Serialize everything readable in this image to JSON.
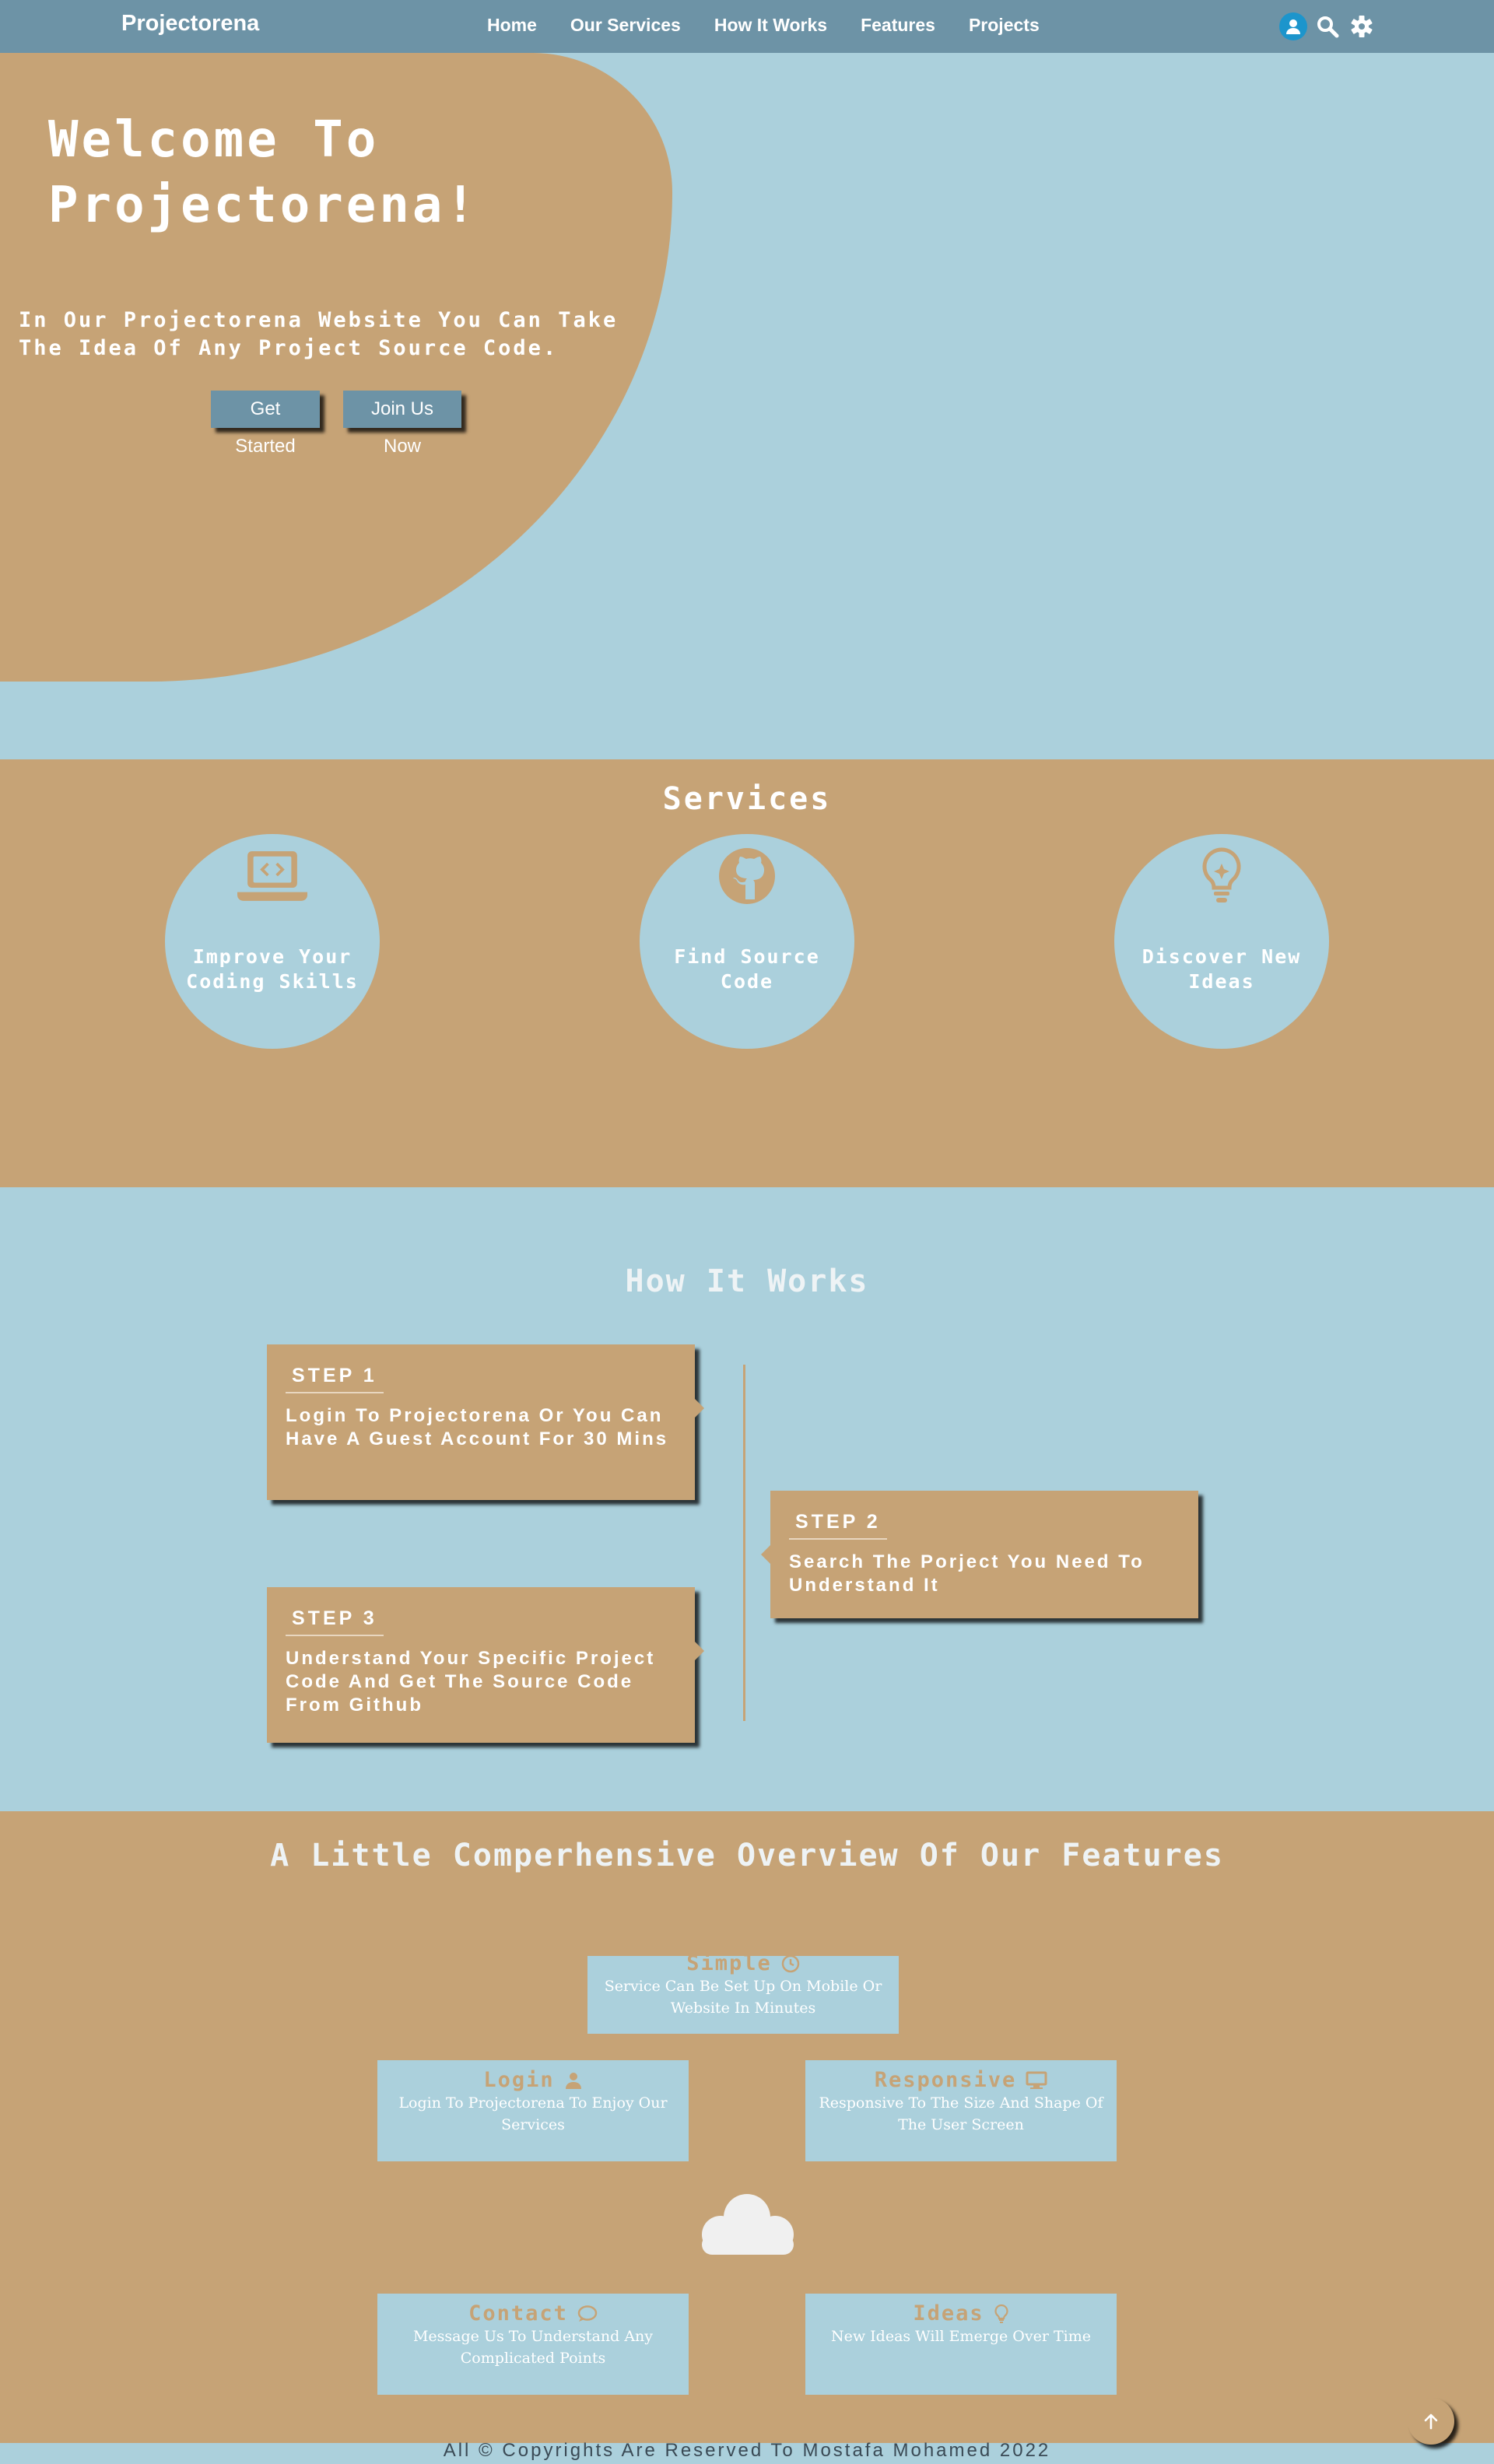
{
  "nav": {
    "brand": "Projectorena",
    "links": [
      "Home",
      "Our Services",
      "How It Works",
      "Features",
      "Projects"
    ],
    "icons": [
      "user-icon",
      "search-icon",
      "gear-icon"
    ]
  },
  "hero": {
    "title": "Welcome To Projectorena!",
    "subtitle": " In Our Projectorena Website You Can Take The Idea Of Any Project Source Code.",
    "buttons": [
      "Get Started",
      "Join Us Now"
    ]
  },
  "services": {
    "title": "Services",
    "items": [
      {
        "icon": "laptop-code-icon",
        "label": "Improve Your Coding Skills"
      },
      {
        "icon": "github-icon",
        "label": "Find Source Code"
      },
      {
        "icon": "lightbulb-icon",
        "label": "Discover New Ideas"
      }
    ]
  },
  "how": {
    "title": "How It Works",
    "steps": [
      {
        "label": "STEP 1",
        "text": "Login To Projectorena Or You Can Have A Guest Account For 30 Mins"
      },
      {
        "label": "STEP 2",
        "text": "Search The Porject You Need To Understand It"
      },
      {
        "label": "STEP 3",
        "text": "Understand Your Specific Project Code And Get The Source Code From Github"
      }
    ]
  },
  "features": {
    "title": "A Little Comperhensive Overview Of Our Features",
    "items": [
      {
        "title": "Simple",
        "icon": "clock-icon",
        "desc": "Service Can Be Set Up On Mobile Or Website In Minutes"
      },
      {
        "title": "Login",
        "icon": "user-icon",
        "desc": "Login To Projectorena To Enjoy Our Services"
      },
      {
        "title": "Responsive",
        "icon": "desktop-icon",
        "desc": "Responsive To The Size And Shape Of The User Screen"
      },
      {
        "title": "Contact",
        "icon": "comment-icon",
        "desc": "Message Us To Understand Any Complicated Points"
      },
      {
        "title": "Ideas",
        "icon": "lightbulb-icon",
        "desc": "New Ideas Will Emerge Over Time"
      }
    ],
    "center_icon": "cloud-icon"
  },
  "footer": {
    "text": "All © Copyrights Are Reserved To Mostafa Mohamed 2022"
  },
  "colors": {
    "nav": "#6d93a6",
    "sand": "#c6a376",
    "sky": "#abd0dc",
    "user_blue": "#1c95cc"
  }
}
